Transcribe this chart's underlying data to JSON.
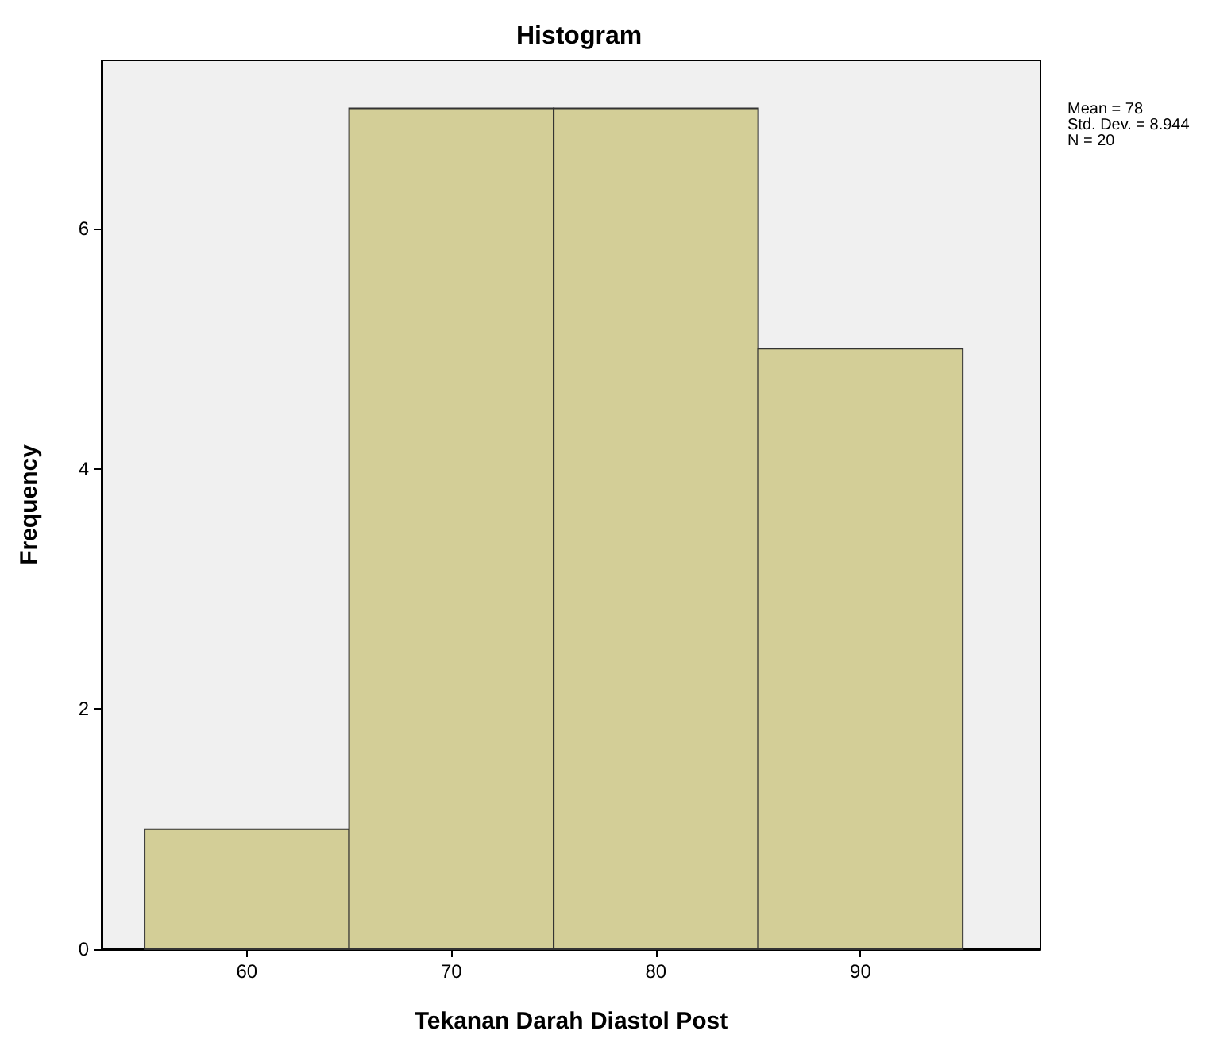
{
  "chart_data": {
    "type": "histogram",
    "title": "Histogram",
    "xlabel": "Tekanan Darah Diastol Post",
    "ylabel": "Frequency",
    "bins": [
      55,
      65,
      75,
      85,
      95
    ],
    "values": [
      1,
      7,
      7,
      5
    ],
    "color": "#d3ce97",
    "xlim": [
      52.9,
      98.8
    ],
    "xticks": [
      60,
      70,
      80,
      90
    ],
    "ylim": [
      0,
      7.4
    ],
    "yticks": [
      0,
      2,
      4,
      6
    ],
    "grid": false,
    "annotations": [
      "Mean = 78",
      "Std. Dev. = 8.944",
      "N = 20"
    ]
  }
}
